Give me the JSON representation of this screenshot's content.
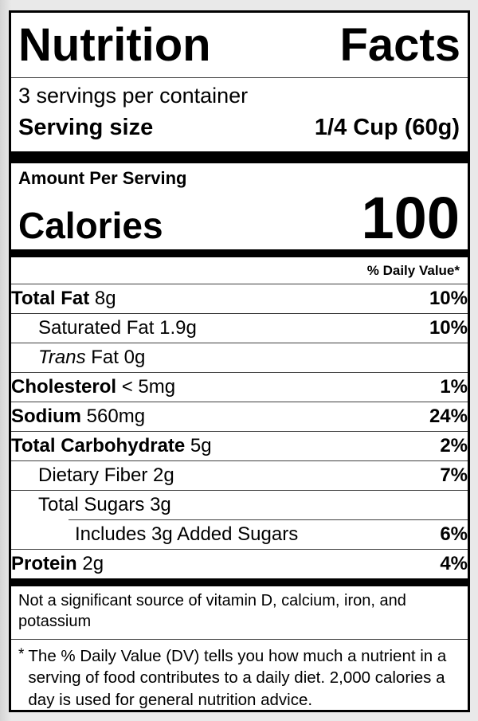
{
  "colors": {
    "page_background": "#e9e9e9",
    "label_background": "#ffffff",
    "ink": "#000000",
    "hairline": "#3f3f3f"
  },
  "label": {
    "title": "Nutrition Facts",
    "servings_per_container": "3 servings per container",
    "serving_size": {
      "label": "Serving size",
      "value": "1/4 Cup (60g)"
    },
    "amount_per_serving": "Amount Per Serving",
    "calories": {
      "label": "Calories",
      "value": "100"
    },
    "daily_value_header": "% Daily Value*",
    "nutrient_rows": [
      {
        "name": "Total Fat",
        "amount": "8g",
        "dv": "10%",
        "style": "primary",
        "indent": 0,
        "divider": "none"
      },
      {
        "name": "Saturated Fat",
        "amount": "1.9g",
        "dv": "10%",
        "style": "sub",
        "indent": 1,
        "divider": "full"
      },
      {
        "name_italic": "Trans",
        "name": "Fat",
        "amount": "0g",
        "dv": "",
        "style": "sub",
        "indent": 1,
        "divider": "full"
      },
      {
        "name": "Cholesterol",
        "amount": "< 5mg",
        "dv": "1%",
        "style": "primary",
        "indent": 0,
        "divider": "full"
      },
      {
        "name": "Sodium",
        "amount": "560mg",
        "dv": "24%",
        "style": "primary",
        "indent": 0,
        "divider": "full"
      },
      {
        "name": "Total Carbohydrate",
        "amount": "5g",
        "dv": "2%",
        "style": "primary",
        "indent": 0,
        "divider": "full"
      },
      {
        "name": "Dietary Fiber",
        "amount": "2g",
        "dv": "7%",
        "style": "sub",
        "indent": 1,
        "divider": "full"
      },
      {
        "name": "Total Sugars",
        "amount": "3g",
        "dv": "",
        "style": "sub",
        "indent": 1,
        "divider": "full"
      },
      {
        "name": "Includes 3g Added Sugars",
        "amount": "",
        "dv": "6%",
        "style": "sub",
        "indent": 2,
        "divider": "partial"
      },
      {
        "name": "Protein",
        "amount": "2g",
        "dv": "4%",
        "style": "primary",
        "indent": 0,
        "divider": "full"
      }
    ],
    "insignificant_note": "Not a significant source of vitamin D, calcium, iron, and potassium",
    "footnote": {
      "marker": "*",
      "text": "The % Daily Value (DV) tells you how much a nutrient in a serving of food contributes to a daily diet. 2,000 calories a day is used for general nutrition advice."
    }
  }
}
